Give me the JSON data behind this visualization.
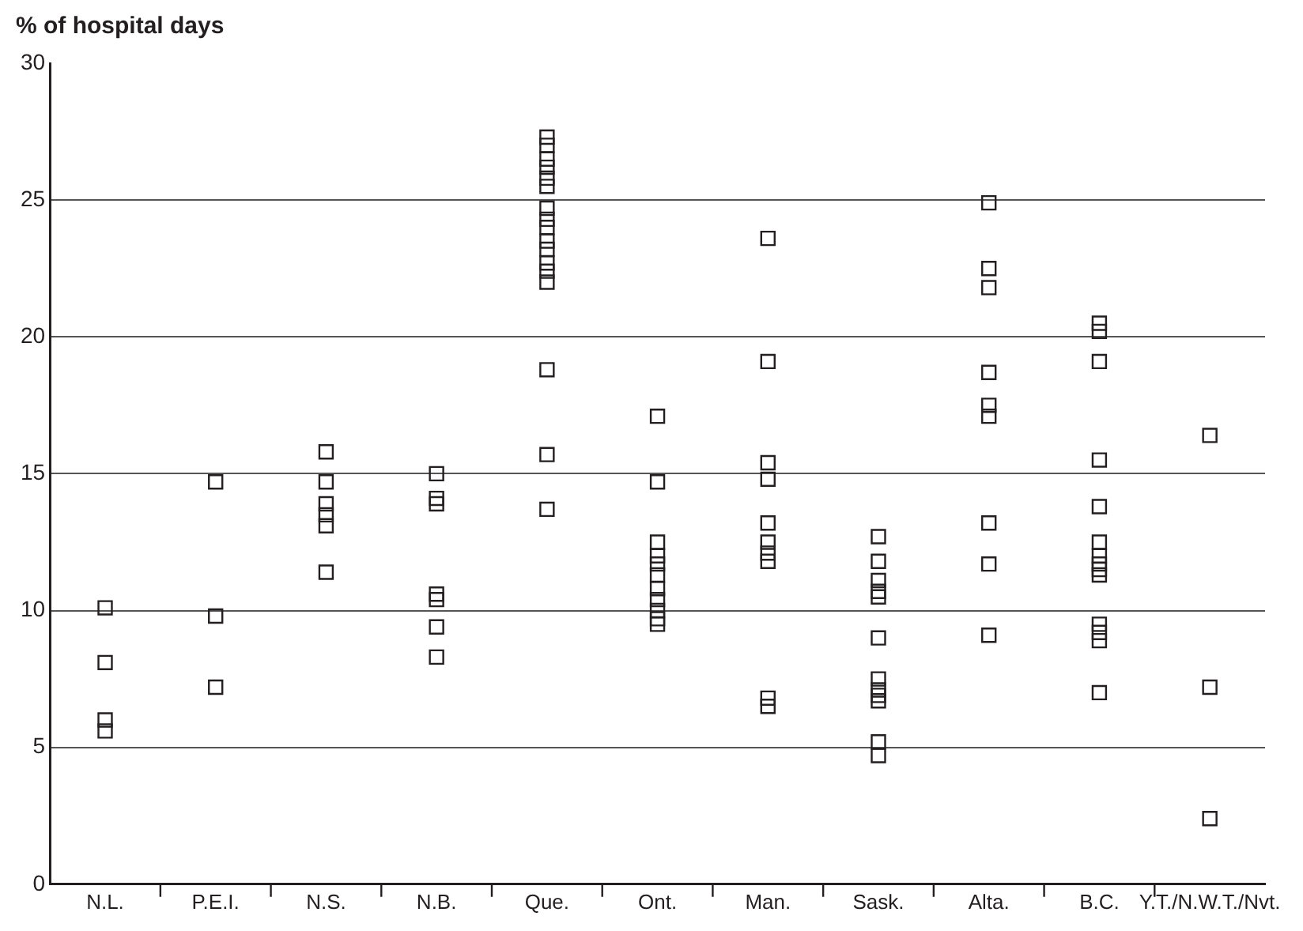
{
  "chart_data": {
    "type": "scatter",
    "ylabel": "% of hospital days",
    "categories": [
      "N.L.",
      "P.E.I.",
      "N.S.",
      "N.B.",
      "Que.",
      "Ont.",
      "Man.",
      "Sask.",
      "Alta.",
      "B.C.",
      "Y.T./N.W.T./Nvt."
    ],
    "series": [
      {
        "color": "#231f20",
        "x": [
          "N.L.",
          "N.L.",
          "N.L.",
          "N.L.",
          "P.E.I.",
          "P.E.I.",
          "P.E.I.",
          "N.S.",
          "N.S.",
          "N.S.",
          "N.S.",
          "N.S.",
          "N.S.",
          "N.B.",
          "N.B.",
          "N.B.",
          "N.B.",
          "N.B.",
          "N.B.",
          "N.B.",
          "Que.",
          "Que.",
          "Que.",
          "Que.",
          "Que.",
          "Que.",
          "Que.",
          "Que.",
          "Que.",
          "Que.",
          "Que.",
          "Que.",
          "Que.",
          "Que.",
          "Que.",
          "Que.",
          "Que.",
          "Ont.",
          "Ont.",
          "Ont.",
          "Ont.",
          "Ont.",
          "Ont.",
          "Ont.",
          "Ont.",
          "Ont.",
          "Ont.",
          "Ont.",
          "Man.",
          "Man.",
          "Man.",
          "Man.",
          "Man.",
          "Man.",
          "Man.",
          "Man.",
          "Man.",
          "Man.",
          "Sask.",
          "Sask.",
          "Sask.",
          "Sask.",
          "Sask.",
          "Sask.",
          "Sask.",
          "Sask.",
          "Sask.",
          "Sask.",
          "Sask.",
          "Sask.",
          "Alta.",
          "Alta.",
          "Alta.",
          "Alta.",
          "Alta.",
          "Alta.",
          "Alta.",
          "Alta.",
          "Alta.",
          "B.C.",
          "B.C.",
          "B.C.",
          "B.C.",
          "B.C.",
          "B.C.",
          "B.C.",
          "B.C.",
          "B.C.",
          "B.C.",
          "B.C.",
          "B.C.",
          "B.C.",
          "B.C.",
          "Y.T./N.W.T./Nvt.",
          "Y.T./N.W.T./Nvt.",
          "Y.T./N.W.T./Nvt."
        ],
        "values": [
          10.1,
          8.1,
          6.0,
          5.6,
          14.7,
          9.8,
          7.2,
          15.8,
          14.7,
          13.9,
          13.5,
          13.1,
          11.4,
          15.0,
          14.1,
          13.9,
          10.6,
          10.4,
          9.4,
          8.3,
          27.3,
          27.0,
          26.5,
          26.2,
          25.8,
          25.5,
          24.7,
          24.3,
          24.0,
          23.5,
          23.2,
          22.7,
          22.4,
          22.0,
          18.8,
          15.7,
          13.7,
          17.1,
          14.7,
          12.5,
          12.0,
          11.7,
          11.3,
          10.8,
          10.4,
          10.0,
          9.7,
          9.5,
          23.6,
          19.1,
          15.4,
          14.8,
          13.2,
          12.5,
          12.1,
          11.8,
          6.8,
          6.5,
          12.7,
          11.8,
          11.1,
          10.7,
          10.5,
          9.0,
          7.5,
          7.1,
          6.9,
          6.7,
          5.2,
          4.7,
          24.9,
          22.5,
          21.8,
          18.7,
          17.5,
          17.1,
          13.2,
          11.7,
          9.1,
          20.5,
          20.2,
          19.1,
          15.5,
          13.8,
          12.5,
          12.0,
          11.7,
          11.5,
          11.3,
          9.5,
          9.2,
          8.9,
          7.0,
          16.4,
          7.2,
          2.4
        ]
      }
    ],
    "ylim": [
      0,
      30
    ],
    "yticks": [
      0,
      5,
      10,
      15,
      20,
      25,
      30
    ],
    "grid": "y",
    "marker": "square",
    "legend": false
  }
}
